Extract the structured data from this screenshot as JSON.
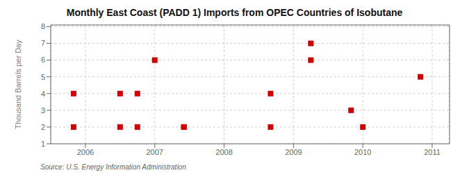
{
  "chart_data": {
    "type": "scatter",
    "title": "Monthly East Coast (PADD 1) Imports from OPEC Countries of Isobutane",
    "ylabel": "Thousand Barrels per Day",
    "annotation": "Source: U.S. Energy Information Administration",
    "x": [
      2005.83,
      2005.83,
      2006.5,
      2006.5,
      2006.75,
      2006.75,
      2007.0,
      2007.42,
      2007.42,
      2008.67,
      2008.67,
      2009.25,
      2009.25,
      2009.83,
      2010.0,
      2010.83
    ],
    "values": [
      2,
      4,
      2,
      4,
      2,
      4,
      6,
      2,
      2,
      2,
      4,
      6,
      7,
      3,
      2,
      5
    ],
    "color": "#cc0000",
    "marker": "square",
    "xlim": [
      2005.5,
      2011.25
    ],
    "ylim": [
      1,
      8.1
    ],
    "xticks": [
      2006,
      2007,
      2008,
      2009,
      2010,
      2011
    ],
    "yticks": [
      1,
      2,
      3,
      4,
      5,
      6,
      7,
      8
    ],
    "grid": true
  }
}
